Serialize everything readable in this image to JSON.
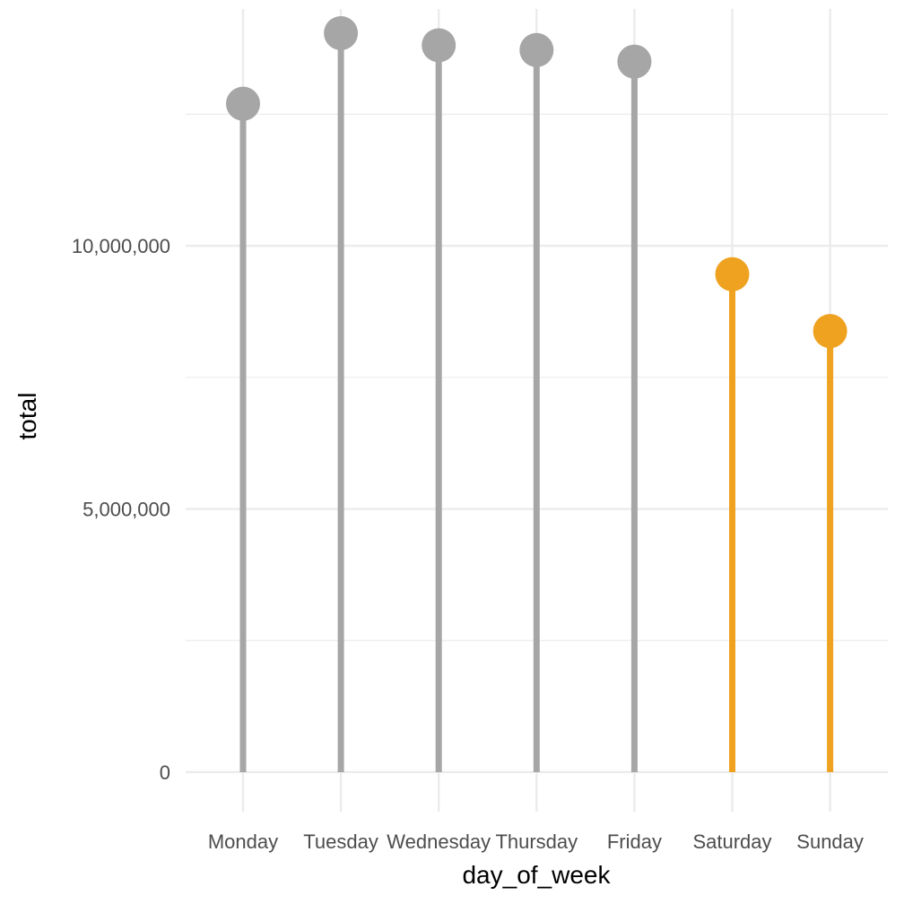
{
  "chart_data": {
    "type": "lollipop",
    "xlabel": "day_of_week",
    "ylabel": "total",
    "categories": [
      "Monday",
      "Tuesday",
      "Wednesday",
      "Thursday",
      "Friday",
      "Saturday",
      "Sunday"
    ],
    "values": [
      12700000,
      14040000,
      13810000,
      13720000,
      13500000,
      9460000,
      8380000
    ],
    "highlight": [
      false,
      false,
      false,
      false,
      false,
      true,
      true
    ],
    "colors": {
      "default": "#a6a6a6",
      "highlight": "#efa21f",
      "grid": "#ebebeb"
    },
    "yticks": [
      0,
      5000000,
      10000000
    ],
    "ytick_labels": [
      "0",
      "5,000,000",
      "10,000,000"
    ],
    "ylim": [
      -750000,
      14500000
    ],
    "grid": true,
    "legend": "none"
  }
}
